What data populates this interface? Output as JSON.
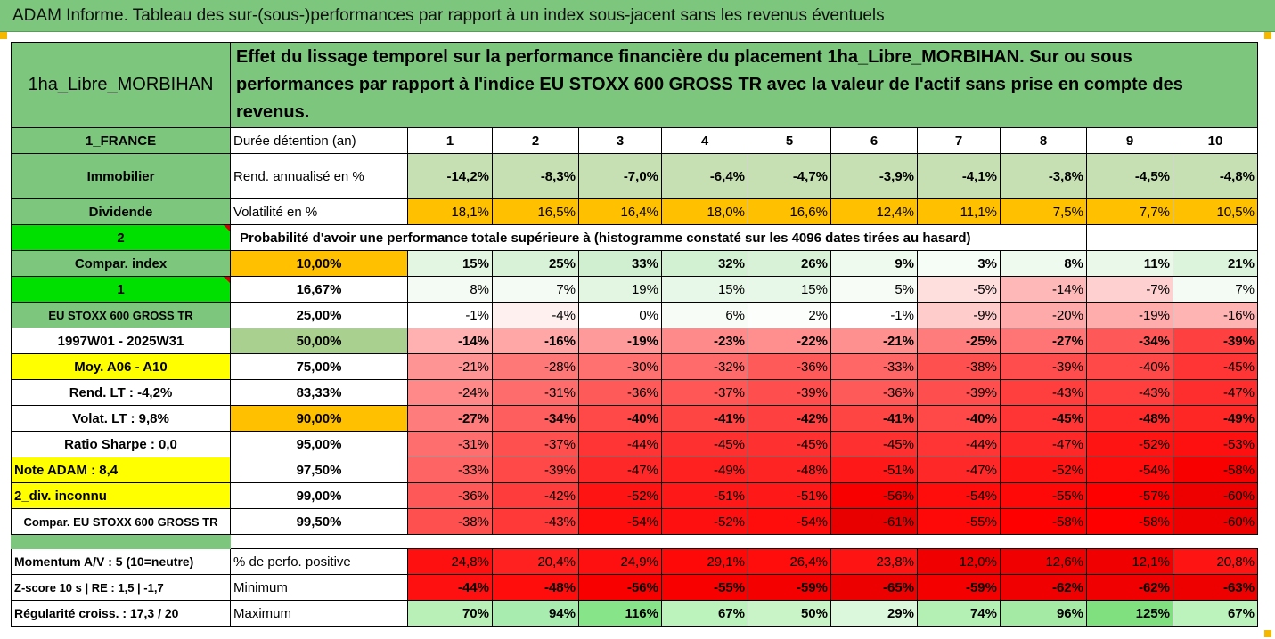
{
  "title": "ADAM Informe. Tableau des sur-(sous-)performances par rapport à un index sous-jacent sans les revenus éventuels",
  "asset_name": "1ha_Libre_MORBIHAN",
  "description": "Effet du lissage temporel sur la performance financière du placement 1ha_Libre_MORBIHAN. Sur ou sous performances par rapport à l'indice EU STOXX 600 GROSS TR avec la valeur de l'actif sans prise en compte des revenus.",
  "left_labels": {
    "country": "1_FRANCE",
    "category": "Immobilier",
    "dividend": "Dividende",
    "n2": "2",
    "compar_index": "Compar. index",
    "n1": "1",
    "index_name": "EU STOXX 600 GROSS TR",
    "period": "1997W01 - 2025W31",
    "moy": "Moy. A06 - A10",
    "rend_lt": "Rend. LT :   -4,2%",
    "volat_lt": "Volat. LT :   9,8%",
    "sharpe": "Ratio Sharpe :   0,0",
    "note": "Note ADAM : 8,4",
    "div": "2_div. inconnu",
    "compar2": "Compar. EU STOXX 600 GROSS TR",
    "momentum": "Momentum A/V : 5 (10=neutre)",
    "zscore": "Z-score 10 s  |  RE : 1,5  |  -1,7",
    "regularite": "Régularité croiss. : 17,3 / 20"
  },
  "row_labels": {
    "duree": "Durée détention (an)",
    "rend": "Rend. annualisé en %",
    "volat": "Volatilité en %",
    "proba": "Probabilité d'avoir une performance totale supérieure à (histogramme constaté sur les 4096 dates tirées au hasard)",
    "pos": "% de perfo. positive",
    "min": "Minimum",
    "max": "Maximum"
  },
  "years": [
    "1",
    "2",
    "3",
    "4",
    "5",
    "6",
    "7",
    "8",
    "9",
    "10"
  ],
  "rend": [
    "-14,2%",
    "-8,3%",
    "-7,0%",
    "-6,4%",
    "-4,7%",
    "-3,9%",
    "-4,1%",
    "-3,8%",
    "-4,5%",
    "-4,8%"
  ],
  "volat": [
    "18,1%",
    "16,5%",
    "16,4%",
    "18,0%",
    "16,6%",
    "12,4%",
    "11,1%",
    "7,5%",
    "7,7%",
    "10,5%"
  ],
  "pct_rows": [
    {
      "pct": "10,00%",
      "vals": [
        "15%",
        "25%",
        "33%",
        "32%",
        "26%",
        "9%",
        "3%",
        "8%",
        "11%",
        "21%"
      ]
    },
    {
      "pct": "16,67%",
      "vals": [
        "8%",
        "7%",
        "19%",
        "15%",
        "15%",
        "5%",
        "-5%",
        "-14%",
        "-7%",
        "7%"
      ]
    },
    {
      "pct": "25,00%",
      "vals": [
        "-1%",
        "-4%",
        "0%",
        "6%",
        "2%",
        "-1%",
        "-9%",
        "-20%",
        "-19%",
        "-16%"
      ]
    },
    {
      "pct": "50,00%",
      "vals": [
        "-14%",
        "-16%",
        "-19%",
        "-23%",
        "-22%",
        "-21%",
        "-25%",
        "-27%",
        "-34%",
        "-39%"
      ]
    },
    {
      "pct": "75,00%",
      "vals": [
        "-21%",
        "-28%",
        "-30%",
        "-32%",
        "-36%",
        "-33%",
        "-38%",
        "-39%",
        "-40%",
        "-45%"
      ]
    },
    {
      "pct": "83,33%",
      "vals": [
        "-24%",
        "-31%",
        "-36%",
        "-37%",
        "-39%",
        "-36%",
        "-39%",
        "-43%",
        "-43%",
        "-47%"
      ]
    },
    {
      "pct": "90,00%",
      "vals": [
        "-27%",
        "-34%",
        "-40%",
        "-41%",
        "-42%",
        "-41%",
        "-40%",
        "-45%",
        "-48%",
        "-49%"
      ]
    },
    {
      "pct": "95,00%",
      "vals": [
        "-31%",
        "-37%",
        "-44%",
        "-45%",
        "-45%",
        "-45%",
        "-44%",
        "-47%",
        "-52%",
        "-53%"
      ]
    },
    {
      "pct": "97,50%",
      "vals": [
        "-33%",
        "-39%",
        "-47%",
        "-49%",
        "-48%",
        "-51%",
        "-47%",
        "-52%",
        "-54%",
        "-58%"
      ]
    },
    {
      "pct": "99,00%",
      "vals": [
        "-36%",
        "-42%",
        "-52%",
        "-51%",
        "-51%",
        "-56%",
        "-54%",
        "-55%",
        "-57%",
        "-60%"
      ]
    },
    {
      "pct": "99,50%",
      "vals": [
        "-38%",
        "-43%",
        "-54%",
        "-52%",
        "-54%",
        "-61%",
        "-55%",
        "-58%",
        "-58%",
        "-60%"
      ]
    }
  ],
  "pos": [
    "24,8%",
    "20,4%",
    "24,9%",
    "29,1%",
    "26,4%",
    "23,8%",
    "12,0%",
    "12,6%",
    "12,1%",
    "20,8%"
  ],
  "min": [
    "-44%",
    "-48%",
    "-56%",
    "-55%",
    "-59%",
    "-65%",
    "-59%",
    "-62%",
    "-62%",
    "-63%"
  ],
  "max": [
    "70%",
    "94%",
    "116%",
    "67%",
    "50%",
    "29%",
    "74%",
    "96%",
    "125%",
    "67%"
  ]
}
